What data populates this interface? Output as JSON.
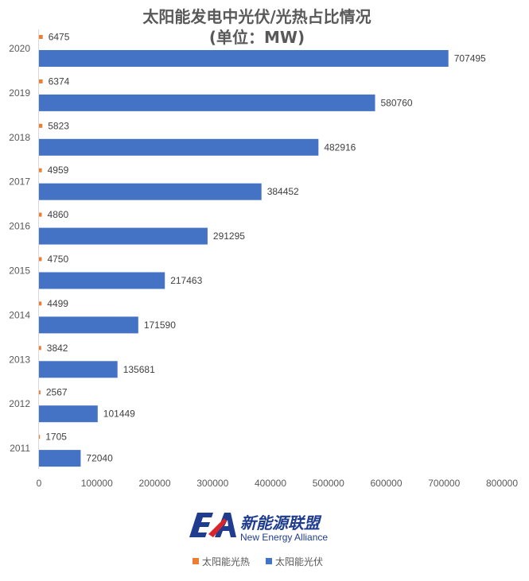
{
  "chart_data": {
    "type": "bar",
    "orientation": "horizontal",
    "title": "太阳能发电中光伏/光热占比情况",
    "subtitle": "(单位：MW)",
    "categories": [
      "2020",
      "2019",
      "2018",
      "2017",
      "2016",
      "2015",
      "2014",
      "2013",
      "2012",
      "2011"
    ],
    "series": [
      {
        "name": "太阳能光热",
        "color": "#ed7d31",
        "values": [
          6475,
          6374,
          5823,
          4959,
          4860,
          4750,
          4499,
          3842,
          2567,
          1705
        ]
      },
      {
        "name": "太阳能光伏",
        "color": "#4472c4",
        "values": [
          707495,
          580760,
          482916,
          384452,
          291295,
          217463,
          171590,
          135681,
          101449,
          72040
        ]
      }
    ],
    "xlim": [
      0,
      800000
    ],
    "x_ticks": [
      "0",
      "100000",
      "200000",
      "300000",
      "400000",
      "500000",
      "600000",
      "700000",
      "800000"
    ],
    "grid": false,
    "legend_position": "bottom"
  },
  "logo": {
    "mark": "EA",
    "name_cn": "新能源联盟",
    "name_en": "New Energy  Alliance"
  }
}
